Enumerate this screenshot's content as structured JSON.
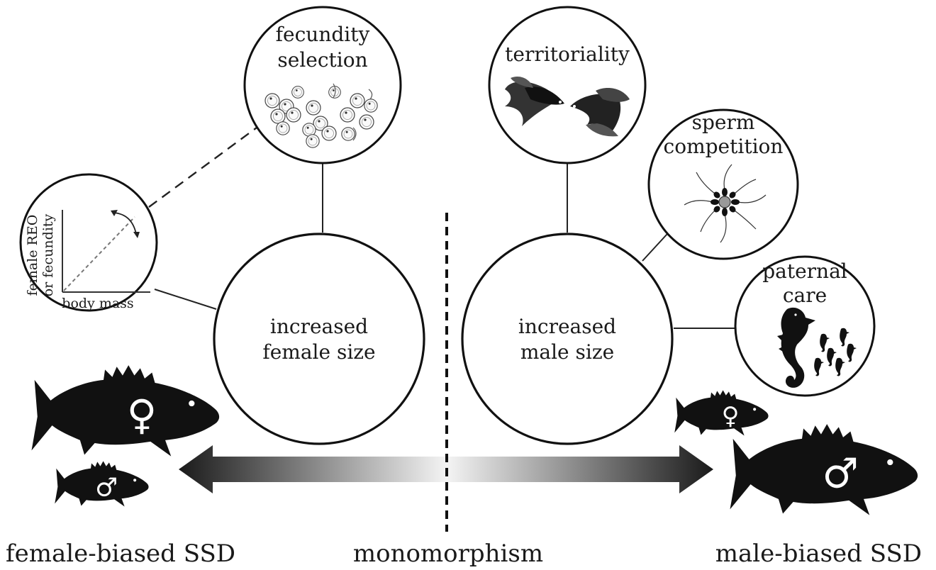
{
  "nodes": {
    "fecundity_selection": [
      "fecundity",
      "selection"
    ],
    "increased_female_size": [
      "increased",
      "female size"
    ],
    "increased_male_size": [
      "increased",
      "male size"
    ],
    "territoriality": [
      "territoriality"
    ],
    "sperm_competition": [
      "sperm",
      "competition"
    ],
    "paternal_care": [
      "paternal",
      "care"
    ]
  },
  "inset_graph": {
    "ylabel_line1": "female REO",
    "ylabel_line2": "or fecundity",
    "xlabel": "body mass"
  },
  "axis": {
    "left_label": "female-biased SSD",
    "center_label": "monomorphism",
    "right_label": "male-biased SSD"
  },
  "symbols": {
    "female": "♀",
    "male": "♂"
  },
  "icons": [
    "fish-eggs-icon",
    "betta-fish-icon",
    "sperm-cluster-icon",
    "seahorse-icon",
    "grouper-fish-icon"
  ],
  "colors": {
    "ink": "#111111",
    "dashed_line": "#222222",
    "arrow_dark": "#1a1a1a",
    "arrow_light": "#f2f2f2"
  }
}
